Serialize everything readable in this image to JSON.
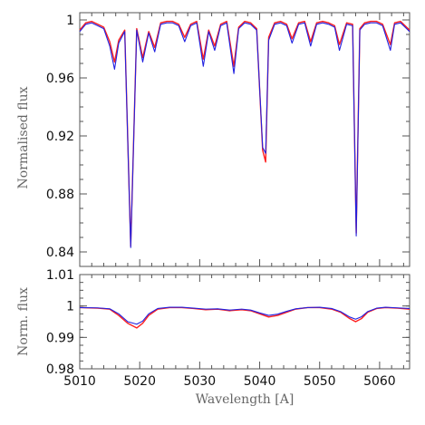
{
  "chart_data": [
    {
      "type": "line",
      "panel": "top",
      "title": "",
      "xlabel": "",
      "ylabel": "Normalised flux",
      "xlim": [
        5010,
        5065
      ],
      "ylim": [
        0.83,
        1.005
      ],
      "yticks": [
        "1",
        "0.96",
        "0.92",
        "0.88",
        "0.84"
      ],
      "ytick_values": [
        1.0,
        0.96,
        0.92,
        0.88,
        0.84
      ],
      "grid": false,
      "legend": "none",
      "series": [
        {
          "color": "#ff2020",
          "style": "noisy observed spectrum",
          "x": [
            5010,
            5011,
            5012,
            5013,
            5014,
            5015,
            5015.8,
            5016.5,
            5017.5,
            5018.5,
            5019.5,
            5020.5,
            5021.5,
            5022.5,
            5023.5,
            5024.5,
            5025.5,
            5026.5,
            5027.5,
            5028.5,
            5029.5,
            5030.6,
            5031.5,
            5032.5,
            5033.5,
            5034.5,
            5035.7,
            5036.5,
            5037.5,
            5038.5,
            5039.5,
            5040.5,
            5041.0,
            5041.5,
            5042.5,
            5043.5,
            5044.5,
            5045.4,
            5046.5,
            5047.5,
            5048.5,
            5049.5,
            5050.5,
            5051.5,
            5052.5,
            5053.3,
            5054.5,
            5055.5,
            5056.1,
            5056.7,
            5057.5,
            5058.5,
            5059.5,
            5060.5,
            5061.8,
            5062.5,
            5063.5,
            5064.5,
            5065
          ],
          "y": [
            0.993,
            0.998,
            0.999,
            0.997,
            0.995,
            0.985,
            0.971,
            0.986,
            0.993,
            0.844,
            0.994,
            0.974,
            0.992,
            0.981,
            0.998,
            0.999,
            0.999,
            0.997,
            0.988,
            0.997,
            0.999,
            0.973,
            0.993,
            0.982,
            0.997,
            0.999,
            0.968,
            0.995,
            0.999,
            0.998,
            0.994,
            0.91,
            0.902,
            0.988,
            0.998,
            0.999,
            0.997,
            0.987,
            0.998,
            0.999,
            0.985,
            0.998,
            0.999,
            0.998,
            0.996,
            0.983,
            0.998,
            0.997,
            0.853,
            0.994,
            0.998,
            0.999,
            0.999,
            0.997,
            0.983,
            0.998,
            0.999,
            0.995,
            0.993
          ]
        },
        {
          "color": "#2020e0",
          "style": "smooth model spectrum",
          "x": [
            5010,
            5011,
            5012,
            5013,
            5014,
            5015,
            5015.8,
            5016.5,
            5017.5,
            5018.5,
            5019.5,
            5020.5,
            5021.5,
            5022.5,
            5023.5,
            5024.5,
            5025.5,
            5026.5,
            5027.5,
            5028.5,
            5029.5,
            5030.6,
            5031.5,
            5032.5,
            5033.5,
            5034.5,
            5035.7,
            5036.5,
            5037.5,
            5038.5,
            5039.5,
            5040.5,
            5041.0,
            5041.5,
            5042.5,
            5043.5,
            5044.5,
            5045.4,
            5046.5,
            5047.5,
            5048.5,
            5049.5,
            5050.5,
            5051.5,
            5052.5,
            5053.3,
            5054.5,
            5055.5,
            5056.1,
            5056.7,
            5057.5,
            5058.5,
            5059.5,
            5060.5,
            5061.8,
            5062.5,
            5063.5,
            5064.5,
            5065
          ],
          "y": [
            0.992,
            0.997,
            0.998,
            0.996,
            0.994,
            0.982,
            0.966,
            0.984,
            0.992,
            0.843,
            0.993,
            0.971,
            0.991,
            0.978,
            0.997,
            0.998,
            0.998,
            0.996,
            0.985,
            0.996,
            0.998,
            0.968,
            0.992,
            0.979,
            0.996,
            0.998,
            0.963,
            0.994,
            0.998,
            0.997,
            0.993,
            0.912,
            0.908,
            0.986,
            0.997,
            0.998,
            0.996,
            0.984,
            0.997,
            0.998,
            0.982,
            0.997,
            0.998,
            0.997,
            0.995,
            0.979,
            0.997,
            0.996,
            0.851,
            0.993,
            0.997,
            0.998,
            0.998,
            0.996,
            0.979,
            0.997,
            0.998,
            0.994,
            0.992
          ]
        }
      ]
    },
    {
      "type": "line",
      "panel": "bottom",
      "title": "",
      "xlabel": "Wavelength [A]",
      "ylabel": "Norm. flux",
      "xlim": [
        5010,
        5065
      ],
      "ylim": [
        0.98,
        1.01
      ],
      "xticks": [
        "5010",
        "5020",
        "5030",
        "5040",
        "5050",
        "5060"
      ],
      "xtick_values": [
        5010,
        5020,
        5030,
        5040,
        5050,
        5060
      ],
      "yticks": [
        "1.01",
        "1",
        "0.99",
        "0.98"
      ],
      "ytick_values": [
        1.01,
        1.0,
        0.99,
        0.98
      ],
      "grid": false,
      "legend": "none",
      "series": [
        {
          "color": "#ff2020",
          "style": "noisy observed spectrum",
          "x": [
            5010,
            5013,
            5015,
            5016.5,
            5018,
            5019.5,
            5020.5,
            5021.5,
            5023,
            5025,
            5027,
            5029,
            5031,
            5033,
            5035,
            5037,
            5038.5,
            5040,
            5041.5,
            5043,
            5044.5,
            5046,
            5048,
            5050,
            5052,
            5053.5,
            5055,
            5056,
            5057,
            5058,
            5059.5,
            5061,
            5063,
            5065
          ],
          "y": [
            0.9995,
            0.9993,
            0.999,
            0.997,
            0.9945,
            0.993,
            0.9945,
            0.997,
            0.999,
            0.9995,
            0.9995,
            0.9992,
            0.9988,
            0.999,
            0.9985,
            0.9988,
            0.9985,
            0.9975,
            0.9965,
            0.997,
            0.998,
            0.999,
            0.9995,
            0.9995,
            0.999,
            0.998,
            0.996,
            0.995,
            0.996,
            0.998,
            0.9992,
            0.9995,
            0.9993,
            0.999
          ]
        },
        {
          "color": "#2020e0",
          "style": "smooth model spectrum",
          "x": [
            5010,
            5013,
            5015,
            5016.5,
            5018,
            5019.5,
            5020.5,
            5021.5,
            5023,
            5025,
            5027,
            5029,
            5031,
            5033,
            5035,
            5037,
            5038.5,
            5040,
            5041.5,
            5043,
            5044.5,
            5046,
            5048,
            5050,
            5052,
            5053.5,
            5055,
            5056,
            5057,
            5058,
            5059.5,
            5061,
            5063,
            5065
          ],
          "y": [
            0.9995,
            0.9994,
            0.9991,
            0.9975,
            0.995,
            0.9942,
            0.9952,
            0.9975,
            0.9992,
            0.9996,
            0.9996,
            0.9993,
            0.999,
            0.9991,
            0.9987,
            0.999,
            0.9987,
            0.9978,
            0.997,
            0.9974,
            0.9983,
            0.9991,
            0.9995,
            0.9996,
            0.9992,
            0.9982,
            0.9965,
            0.9958,
            0.9966,
            0.9982,
            0.9993,
            0.9996,
            0.9994,
            0.9992
          ]
        }
      ]
    }
  ]
}
